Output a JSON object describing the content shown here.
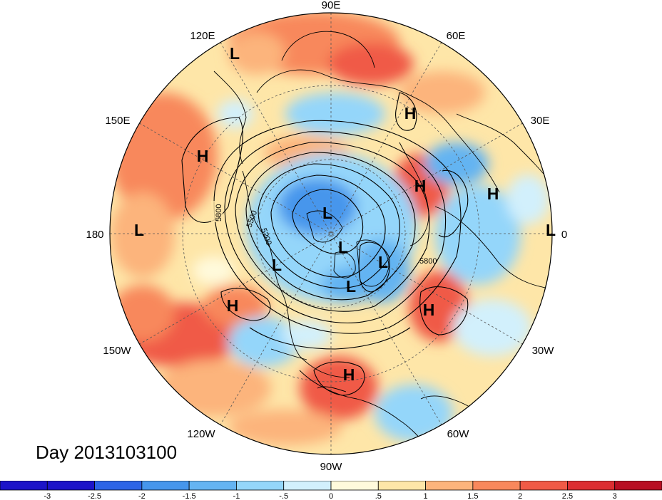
{
  "title": "Day 2013103100",
  "longitude_labels": {
    "top": "90E",
    "top_left": "120E",
    "top_right": "60E",
    "upper_left": "150E",
    "upper_right": "30E",
    "left": "180",
    "right": "0",
    "lower_left": "150W",
    "lower_right": "30W",
    "bottom_left": "120W",
    "bottom_right": "60W",
    "bottom": "90W"
  },
  "pressure_centers": [
    {
      "type": "L",
      "region": "east-siberia"
    },
    {
      "type": "H",
      "region": "kamchatka"
    },
    {
      "type": "L",
      "region": "dateline"
    },
    {
      "type": "H",
      "region": "northeast-pacific"
    },
    {
      "type": "L",
      "region": "polar-1"
    },
    {
      "type": "L",
      "region": "polar-2"
    },
    {
      "type": "L",
      "region": "canada"
    },
    {
      "type": "L",
      "region": "hudson-bay"
    },
    {
      "type": "L",
      "region": "baffin"
    },
    {
      "type": "H",
      "region": "western-atlantic"
    },
    {
      "type": "H",
      "region": "gulf-of-mexico"
    },
    {
      "type": "H",
      "region": "scandinavia"
    },
    {
      "type": "H",
      "region": "western-russia"
    },
    {
      "type": "H",
      "region": "europe"
    },
    {
      "type": "L",
      "region": "prime-meridian"
    }
  ],
  "contour_labels": [
    "5800",
    "5500",
    "5200",
    "5800"
  ],
  "colorbar": {
    "colors": [
      "#1c14c8",
      "#2c64e6",
      "#4696ec",
      "#64b4f2",
      "#94d6fa",
      "#d2f0fc",
      "#fffadc",
      "#fee6a8",
      "#fcb47c",
      "#f8885c",
      "#f05a46",
      "#dc2e32",
      "#b80e22"
    ],
    "ticks": [
      "-3",
      "-2.5",
      "-2",
      "-1.5",
      "-1",
      "-.5",
      "0",
      ".5",
      "1",
      "1.5",
      "2",
      "2.5",
      "3"
    ]
  }
}
